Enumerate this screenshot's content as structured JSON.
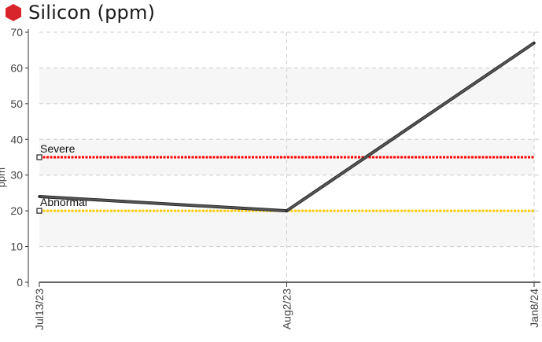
{
  "header": {
    "title": "Silicon (ppm)",
    "icon": "red-hexagon-icon"
  },
  "chart_data": {
    "type": "line",
    "title": "Silicon (ppm)",
    "ylabel": "ppm",
    "xlabel": "",
    "ylim": [
      0,
      70
    ],
    "yticks": [
      0,
      10,
      20,
      30,
      40,
      50,
      60,
      70
    ],
    "categories": [
      "Jul13/23",
      "Aug2/23",
      "Jan8/24"
    ],
    "series": [
      {
        "values": [
          24,
          20,
          67
        ],
        "color": "#555555"
      }
    ],
    "thresholds": [
      {
        "name": "Severe",
        "value": 35,
        "color": "#ff0000"
      },
      {
        "name": "Abnormal",
        "value": 20,
        "color": "#ffcc00"
      }
    ],
    "grid": true
  }
}
